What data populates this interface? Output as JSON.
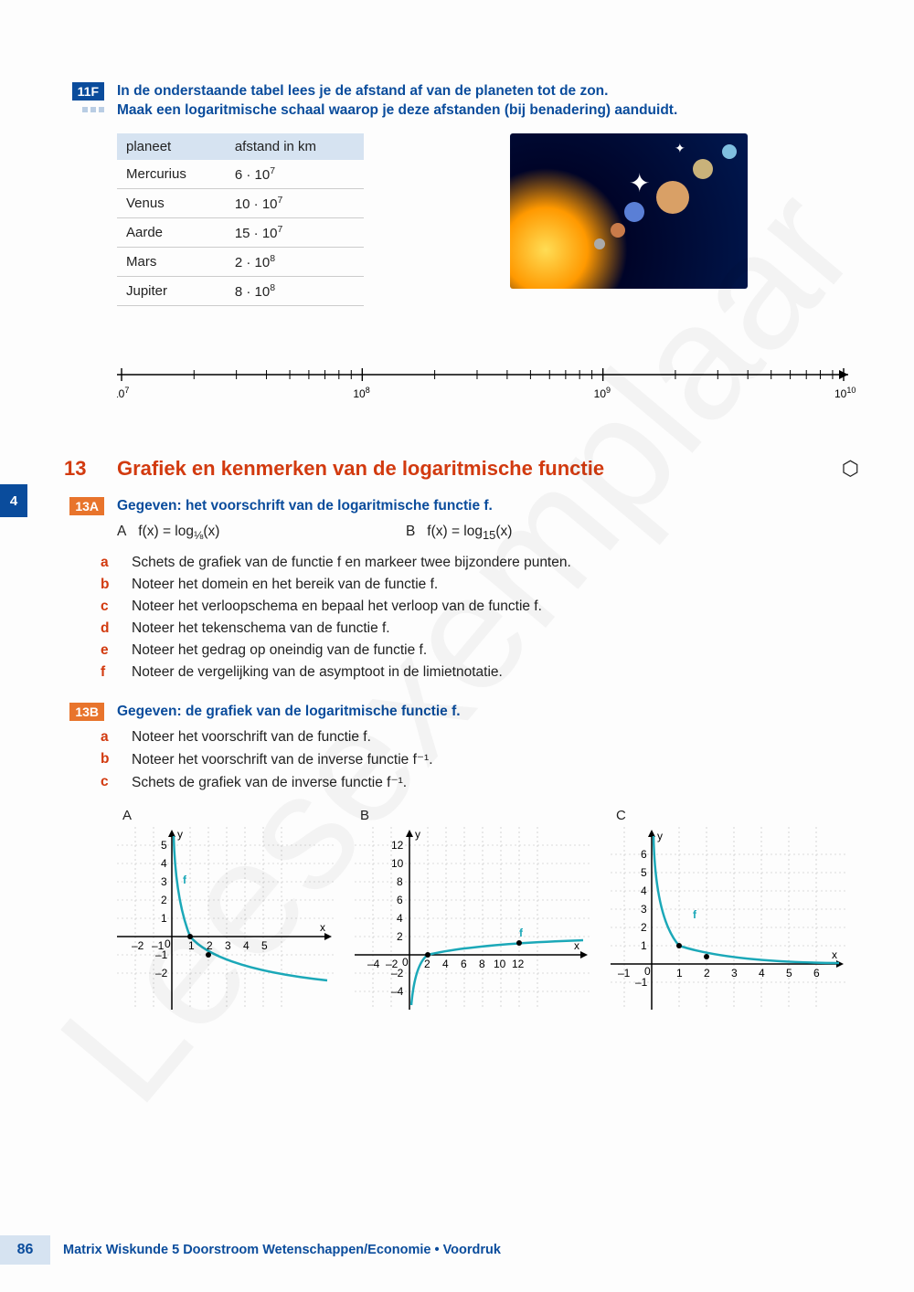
{
  "sidetab": "4",
  "ex11f": {
    "badge": "11F",
    "line1": "In de onderstaande tabel lees je de afstand af van de planeten tot de zon.",
    "line2": "Maak een logaritmische schaal waarop je deze afstanden (bij benadering) aanduidt."
  },
  "planetTable": {
    "columns": [
      "planeet",
      "afstand in km"
    ],
    "rows": [
      [
        "Mercurius",
        "6 · 10^7"
      ],
      [
        "Venus",
        "10 · 10^7"
      ],
      [
        "Aarde",
        "15 · 10^7"
      ],
      [
        "Mars",
        "2 · 10^8"
      ],
      [
        "Jupiter",
        "8 · 10^8"
      ]
    ]
  },
  "logAxis": {
    "ticks": [
      "10^7",
      "10^8",
      "10^9",
      "10^10"
    ]
  },
  "section13": {
    "num": "13",
    "title": "Grafiek en kenmerken van de logaritmische functie"
  },
  "ex13a": {
    "badge": "13A",
    "heading": "Gegeven: het voorschrift van de logaritmische functie f.",
    "A_label": "A",
    "A_formula": "f(x) = log_{1/8}(x)",
    "B_label": "B",
    "B_formula": "f(x) = log_{15}(x)",
    "items": [
      {
        "l": "a",
        "t": "Schets de grafiek van de functie f en markeer twee bijzondere punten."
      },
      {
        "l": "b",
        "t": "Noteer het domein en het bereik van de functie f."
      },
      {
        "l": "c",
        "t": "Noteer het verloopschema en bepaal het verloop van de functie f."
      },
      {
        "l": "d",
        "t": "Noteer het tekenschema van de functie f."
      },
      {
        "l": "e",
        "t": "Noteer het gedrag op oneindig van de functie f."
      },
      {
        "l": "f",
        "t": "Noteer de vergelijking van de asymptoot in de limietnotatie."
      }
    ]
  },
  "ex13b": {
    "badge": "13B",
    "heading": "Gegeven: de grafiek van de logaritmische functie f.",
    "items": [
      {
        "l": "a",
        "t": "Noteer het voorschrift van de functie f."
      },
      {
        "l": "b",
        "t": "Noteer het voorschrift van de inverse functie f⁻¹."
      },
      {
        "l": "c",
        "t": "Schets de grafiek van de inverse functie f⁻¹."
      }
    ]
  },
  "charts": {
    "A": {
      "label": "A",
      "xrange": [
        -2,
        5
      ],
      "yrange": [
        -2,
        5
      ],
      "xticks": [
        -2,
        -1,
        0,
        1,
        2,
        3,
        4,
        5
      ],
      "yticks": [
        -2,
        -1,
        1,
        2,
        3,
        4,
        5
      ],
      "f_label": "f",
      "curve_color": "#1ba8b8"
    },
    "B": {
      "label": "B",
      "xrange": [
        -4,
        12
      ],
      "yrange": [
        -4,
        12
      ],
      "xticks": [
        -4,
        -2,
        0,
        2,
        4,
        6,
        8,
        10,
        12
      ],
      "yticks": [
        -4,
        -2,
        2,
        4,
        6,
        8,
        10,
        12
      ],
      "f_label": "f",
      "curve_color": "#1ba8b8"
    },
    "C": {
      "label": "C",
      "xrange": [
        -1,
        6
      ],
      "yrange": [
        -1,
        6
      ],
      "xticks": [
        -1,
        0,
        1,
        2,
        3,
        4,
        5,
        6
      ],
      "yticks": [
        -1,
        1,
        2,
        3,
        4,
        5,
        6
      ],
      "f_label": "f",
      "curve_color": "#1ba8b8"
    }
  },
  "footer": {
    "page": "86",
    "title": "Matrix Wiskunde 5 Doorstroom Wetenschappen/Economie • Voordruk"
  },
  "watermark": "Leesexemplaar",
  "colors": {
    "badge_blue": "#0a4c9c",
    "badge_orange": "#e8742c",
    "section_red": "#d23a0f",
    "curve": "#1ba8b8",
    "grid": "#bbbbbb",
    "table_head": "#d6e3f1"
  }
}
